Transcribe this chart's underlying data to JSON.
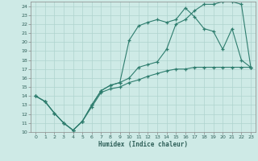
{
  "xlabel": "Humidex (Indice chaleur)",
  "bg_color": "#ceeae6",
  "line_color": "#2e7d6e",
  "grid_color": "#afd4ce",
  "xlim": [
    -0.5,
    23.5
  ],
  "ylim": [
    10,
    24.5
  ],
  "xticks": [
    0,
    1,
    2,
    3,
    4,
    5,
    6,
    7,
    8,
    9,
    10,
    11,
    12,
    13,
    14,
    15,
    16,
    17,
    18,
    19,
    20,
    21,
    22,
    23
  ],
  "yticks": [
    10,
    11,
    12,
    13,
    14,
    15,
    16,
    17,
    18,
    19,
    20,
    21,
    22,
    23,
    24
  ],
  "curve1_x": [
    0,
    1,
    2,
    3,
    4,
    5,
    6,
    7,
    8,
    9,
    10,
    11,
    12,
    13,
    14,
    15,
    16,
    17,
    18,
    19,
    20,
    21,
    22,
    23
  ],
  "curve1_y": [
    14.0,
    13.4,
    12.1,
    11.0,
    10.2,
    11.2,
    13.0,
    14.6,
    15.2,
    15.5,
    16.0,
    17.2,
    17.5,
    17.8,
    19.2,
    22.0,
    22.5,
    23.5,
    24.2,
    24.2,
    24.5,
    24.5,
    24.2,
    17.2
  ],
  "curve2_x": [
    0,
    1,
    2,
    3,
    4,
    5,
    6,
    7,
    8,
    9,
    10,
    11,
    12,
    13,
    14,
    15,
    16,
    17,
    18,
    19,
    20,
    21,
    22,
    23
  ],
  "curve2_y": [
    14.0,
    13.4,
    12.1,
    11.0,
    10.2,
    11.2,
    13.0,
    14.6,
    15.2,
    15.5,
    20.2,
    21.8,
    22.2,
    22.5,
    22.2,
    22.5,
    23.8,
    22.8,
    21.5,
    21.2,
    19.2,
    21.5,
    18.0,
    17.2
  ],
  "curve3_x": [
    0,
    1,
    2,
    3,
    4,
    5,
    6,
    7,
    8,
    9,
    10,
    11,
    12,
    13,
    14,
    15,
    16,
    17,
    18,
    19,
    20,
    21,
    22,
    23
  ],
  "curve3_y": [
    14.0,
    13.4,
    12.1,
    11.0,
    10.2,
    11.2,
    12.8,
    14.4,
    14.8,
    15.0,
    15.5,
    15.8,
    16.2,
    16.5,
    16.8,
    17.0,
    17.0,
    17.2,
    17.2,
    17.2,
    17.2,
    17.2,
    17.2,
    17.2
  ]
}
